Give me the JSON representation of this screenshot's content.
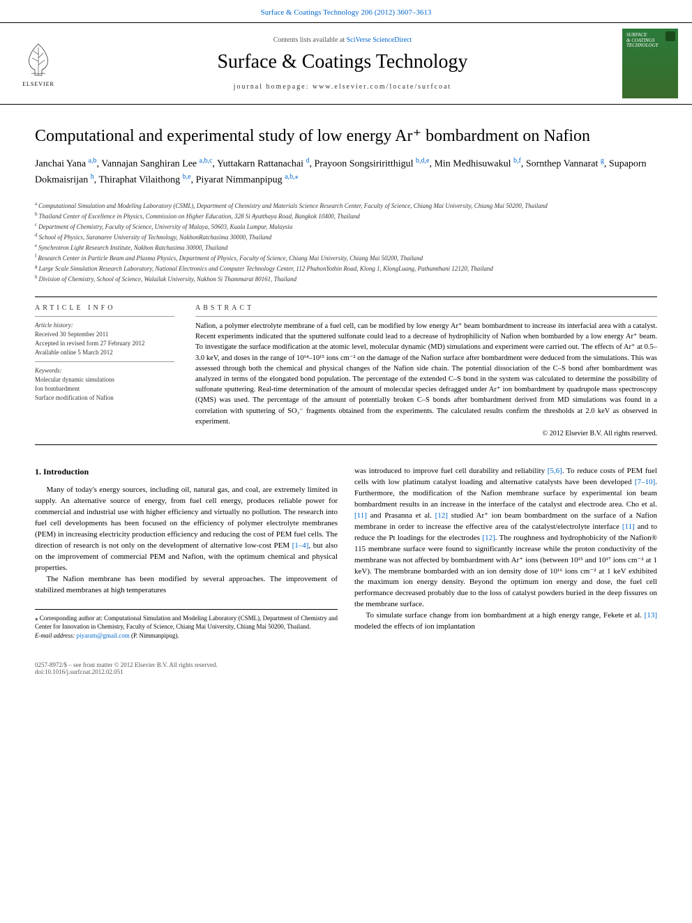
{
  "top_link": {
    "prefix": "Surface & Coatings Technology 206 (2012) 3607–3613"
  },
  "header": {
    "contents_prefix": "Contents lists available at ",
    "contents_link": "SciVerse ScienceDirect",
    "journal_name": "Surface & Coatings Technology",
    "homepage_prefix": "journal homepage: ",
    "homepage_url": "www.elsevier.com/locate/surfcoat",
    "elsevier_label": "ELSEVIER",
    "cover_text_line1": "SURFACE",
    "cover_text_line2": "& COATINGS",
    "cover_text_line3": "TECHNOLOGY"
  },
  "title": "Computational and experimental study of low energy Ar⁺ bombardment on Nafion",
  "authors_html": "Janchai Yana <sup class='author-affil'>a,b</sup>, Vannajan Sanghiran Lee <sup class='author-affil'>a,b,c</sup>, Yuttakarn Rattanachai <sup class='author-affil'>d</sup>, Prayoon Songsiriritthigul <sup class='author-affil'>b,d,e</sup>, Min Medhisuwakul <sup class='author-affil'>b,f</sup>, Sornthep Vannarat <sup class='author-affil'>g</sup>, Supaporn Dokmaisrijan <sup class='author-affil'>h</sup>, Thiraphat Vilaithong <sup class='author-affil'>b,e</sup>, Piyarat Nimmanpipug <sup class='author-affil'>a,b,</sup><sup class='star-sup'>⁎</sup>",
  "affiliations": [
    {
      "letter": "a",
      "text": "Computational Simulation and Modeling Laboratory (CSML), Department of Chemistry and Materials Science Research Center, Faculty of Science, Chiang Mai University, Chiang Mai 50200, Thailand"
    },
    {
      "letter": "b",
      "text": "Thailand Center of Excellence in Physics, Commission on Higher Education, 328 Si Ayutthaya Road, Bangkok 10400, Thailand"
    },
    {
      "letter": "c",
      "text": "Department of Chemistry, Faculty of Science, University of Malaya, 50603, Kuala Lumpur, Malaysia"
    },
    {
      "letter": "d",
      "text": "School of Physics, Suranaree University of Technology, NakhonRatchasima 30000, Thailand"
    },
    {
      "letter": "e",
      "text": "Synchrotron Light Research Institute, Nakhon Ratchasima 30000, Thailand"
    },
    {
      "letter": "f",
      "text": "Research Center in Particle Beam and Plasma Physics, Department of Physics, Faculty of Science, Chiang Mai University, Chiang Mai 50200, Thailand"
    },
    {
      "letter": "g",
      "text": "Large Scale Simulation Research Laboratory, National Electronics and Computer Technology Center, 112 PhahonYothin Road, Klong 1, KlongLuang, Pathumthani 12120, Thailand"
    },
    {
      "letter": "h",
      "text": "Division of Chemistry, School of Science, Walailak University, Nakhon Si Thammarat 80161, Thailand"
    }
  ],
  "article_info": {
    "header": "ARTICLE INFO",
    "history_label": "Article history:",
    "received": "Received 30 September 2011",
    "accepted": "Accepted in revised form 27 February 2012",
    "online": "Available online 5 March 2012",
    "keywords_label": "Keywords:",
    "keywords": [
      "Molecular dynamic simulations",
      "Ion bombardment",
      "Surface modification of Nafion"
    ]
  },
  "abstract": {
    "header": "ABSTRACT",
    "text": "Nafion, a polymer electrolyte membrane of a fuel cell, can be modified by low energy Ar⁺ beam bombardment to increase its interfacial area with a catalyst. Recent experiments indicated that the sputtered sulfonate could lead to a decrease of hydrophilicity of Nafion when bombarded by a low energy Ar⁺ beam. To investigate the surface modification at the atomic level, molecular dynamic (MD) simulations and experiment were carried out. The effects of Ar⁺ at 0.5–3.0 keV, and doses in the range of 10¹⁴–10¹⁵ ions cm⁻² on the damage of the Nafion surface after bombardment were deduced from the simulations. This was assessed through both the chemical and physical changes of the Nafion side chain. The potential dissociation of the C–S bond after bombardment was analyzed in terms of the elongated bond population. The percentage of the extended C–S bond in the system was calculated to determine the possibility of sulfonate sputtering. Real-time determination of the amount of molecular species defragged under Ar⁺ ion bombardment by quadrupole mass spectroscopy (QMS) was used. The percentage of the amount of potentially broken C–S bonds after bombardment derived from MD simulations was found in a correlation with sputtering of SO₃⁻ fragments obtained from the experiments. The calculated results confirm the thresholds at 2.0 keV as observed in experiment.",
    "copyright": "© 2012 Elsevier B.V. All rights reserved."
  },
  "body": {
    "heading": "1. Introduction",
    "p1": "Many of today's energy sources, including oil, natural gas, and coal, are extremely limited in supply. An alternative source of energy, from fuel cell energy, produces reliable power for commercial and industrial use with higher efficiency and virtually no pollution. The research into fuel cell developments has been focused on the efficiency of polymer electrolyte membranes (PEM) in increasing electricity production efficiency and reducing the cost of PEM fuel cells. The direction of research is not only on the development of alternative low-cost PEM ",
    "ref1": "[1–4]",
    "p1b": ", but also on the improvement of commercial PEM and Nafion, with the optimum chemical and physical properties.",
    "p2": "The Nafion membrane has been modified by several approaches. The improvement of stabilized membranes at high temperatures",
    "p3a": "was introduced to improve fuel cell durability and reliability ",
    "ref2": "[5,6]",
    "p3b": ". To reduce costs of PEM fuel cells with low platinum catalyst loading and alternative catalysts have been developed ",
    "ref3": "[7–10]",
    "p3c": ". Furthermore, the modification of the Nafion membrane surface by experimental ion beam bombardment results in an increase in the interface of the catalyst and electrode area. Cho et al. ",
    "ref4": "[11]",
    "p3d": " and Prasanna et al. ",
    "ref5": "[12]",
    "p3e": " studied Ar⁺ ion beam bombardment on the surface of a Nafion membrane in order to increase the effective area of the catalyst/electrolyte interface ",
    "ref6": "[11]",
    "p3f": " and to reduce the Pt loadings for the electrodes ",
    "ref7": "[12]",
    "p3g": ". The roughness and hydrophobicity of the Nafion® 115 membrane surface were found to significantly increase while the proton conductivity of the membrane was not affected by bombardment with Ar⁺ ions (between 10¹⁵ and 10¹⁷ ions cm⁻² at 1 keV). The membrane bombarded with an ion density dose of 10¹⁶ ions cm⁻² at 1 keV exhibited the maximum ion energy density. Beyond the optimum ion energy and dose, the fuel cell performance decreased probably due to the loss of catalyst powders buried in the deep fissures on the membrane surface.",
    "p4a": "To simulate surface change from ion bombardment at a high energy range, Fekete et al. ",
    "ref8": "[13]",
    "p4b": " modeled the effects of ion implantation"
  },
  "footnote": {
    "corr": "⁎ Corresponding author at: Computational Simulation and Modeling Laboratory (CSML), Department of Chemistry and Center for Innovation in Chemistry, Faculty of Science, Chiang Mai University, Chiang Mai 50200, Thailand.",
    "email_label": "E-mail address: ",
    "email": "piyaratn@gmail.com",
    "email_suffix": " (P. Nimmanpipug)."
  },
  "bottom": {
    "issn": "0257-8972/$ – see front matter © 2012 Elsevier B.V. All rights reserved.",
    "doi": "doi:10.1016/j.surfcoat.2012.02.051"
  },
  "colors": {
    "link": "#0066cc",
    "cover_bg_top": "#2a7a3a",
    "cover_bg_bottom": "#3a6a2a"
  }
}
